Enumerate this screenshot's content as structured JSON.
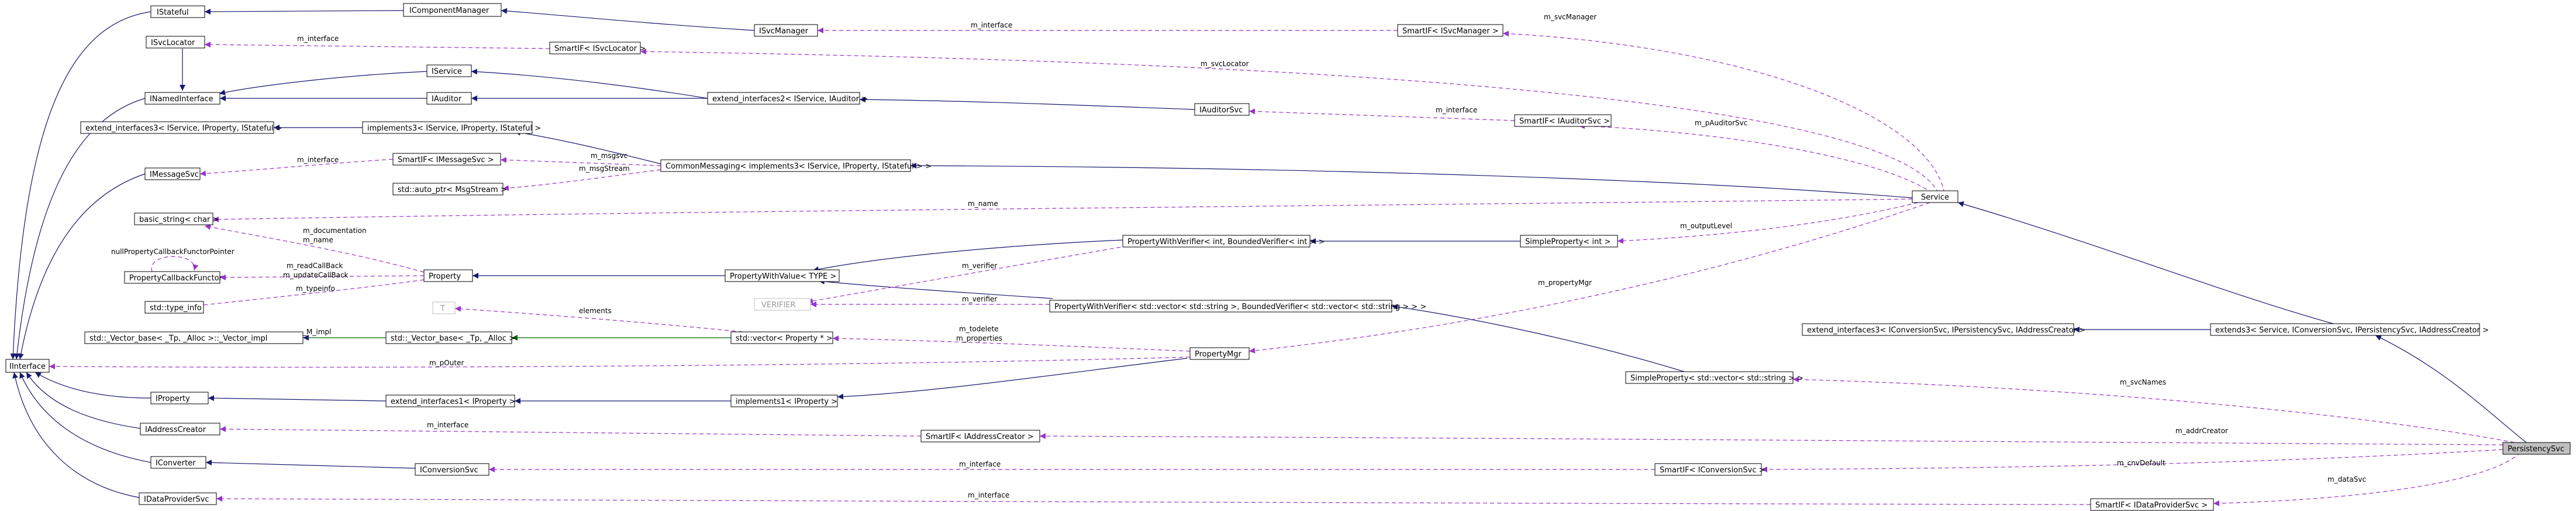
{
  "nodes": {
    "istateful": "IStateful",
    "icomponentmanager": "IComponentManager",
    "isvcmanager": "ISvcManager",
    "sf_isvcmanager": "SmartIF< ISvcManager >",
    "isvclocator": "ISvcLocator",
    "sf_isvclocator": "SmartIF< ISvcLocator >",
    "inamedinterface": "INamedInterface",
    "iservice": "IService",
    "iauditor": "IAuditor",
    "extend_interfaces2": "extend_interfaces2< IService, IAuditor >",
    "iauditorsvc": "IAuditorSvc",
    "sf_iauditorsvc": "SmartIF< IAuditorSvc >",
    "extend_interfaces3_sps": "extend_interfaces3< IService, IProperty, IStateful >",
    "implements3_sps": "implements3< IService, IProperty, IStateful >",
    "imessagesvc": "IMessageSvc",
    "sf_imessagesvc": "SmartIF< IMessageSvc >",
    "commonmessaging": "CommonMessaging< implements3< IService, IProperty, IStateful > >",
    "autoptr_msgstream": "std::auto_ptr< MsgStream >",
    "service": "Service",
    "basic_string": "basic_string< char >",
    "property": "Property",
    "propertycallbackfunctor": "PropertyCallbackFunctor",
    "type_info": "std::type_info",
    "pwv_type": "PropertyWithValue< TYPE >",
    "pwverifier_int": "PropertyWithVerifier< int, BoundedVerifier< int > >",
    "simpleproperty_int": "SimpleProperty< int >",
    "verifier": "VERIFIER",
    "pwverifier_vec": "PropertyWithVerifier< std::vector< std::string >, BoundedVerifier< std::vector< std::string > > >",
    "t": "T",
    "vector_impl": "std::_Vector_base< _Tp, _Alloc >::_Vector_impl",
    "vector_base": "std::_Vector_base< _Tp, _Alloc >",
    "vector_property_ptr": "std::vector< Property * >",
    "propertymgr": "PropertyMgr",
    "iinterface": "IInterface",
    "iproperty": "IProperty",
    "extend_interfaces1": "extend_interfaces1< IProperty >",
    "implements1": "implements1< IProperty >",
    "simpleproperty_vec": "SimpleProperty< std::vector< std::string > >",
    "extend_interfaces3_conv": "extend_interfaces3< IConversionSvc, IPersistencySvc, IAddressCreator >",
    "extends3": "extends3< Service, IConversionSvc, IPersistencySvc, IAddressCreator >",
    "iaddresscreator": "IAddressCreator",
    "sf_iaddresscreator": "SmartIF< IAddressCreator >",
    "persistencysvc": "PersistencySvc",
    "iconverter": "IConverter",
    "iconversionsvc": "IConversionSvc",
    "sf_iconversionsvc": "SmartIF< IConversionSvc >",
    "idataprovidersvc": "IDataProviderSvc",
    "sf_idataprovidersvc": "SmartIF< IDataProviderSvc >"
  },
  "edge_labels": {
    "m_interface_svcmanager": "m_interface",
    "m_svcmanager": "m_svcManager",
    "m_interface_svclocator": "m_interface",
    "m_svclocator": "m_svcLocator",
    "m_interface_auditorsvc": "m_interface",
    "m_pauditorsvc": "m_pAuditorSvc",
    "m_interface_messagesvc": "m_interface",
    "m_msgsvc": "m_msgsvc",
    "m_msgstream": "m_msgStream",
    "m_name": "m_name",
    "m_documentation": "m_documentation",
    "m_name_property": "m_name",
    "nullpropertycallback": "nullPropertyCallbackFunctorPointer",
    "m_readcallback": "m_readCallBack",
    "m_updatecallback": "m_updateCallBack",
    "m_typeinfo": "m_typeinfo",
    "m_verifier_int": "m_verifier",
    "m_outputlevel": "m_outputLevel",
    "m_verifier_vec": "m_verifier",
    "m_propertymgr": "m_propertyMgr",
    "elements": "elements",
    "m_impl": "_M_impl",
    "m_todelete": "m_todelete",
    "m_properties": "m_properties",
    "m_pouter": "m_pOuter",
    "m_svcnames": "m_svcNames",
    "m_interface_addresscreator": "m_interface",
    "m_addrcreator": "m_addrCreator",
    "m_interface_conversionsvc": "m_interface",
    "m_cnvdefault": "m_cnvDefault",
    "m_interface_dataprovidersvc": "m_interface",
    "m_datasvc": "m_dataSvc"
  },
  "colors": {
    "inheritance": "#191970",
    "template": "#006400",
    "usage": "#9a32cd",
    "highlight": "#bfbfbf"
  }
}
